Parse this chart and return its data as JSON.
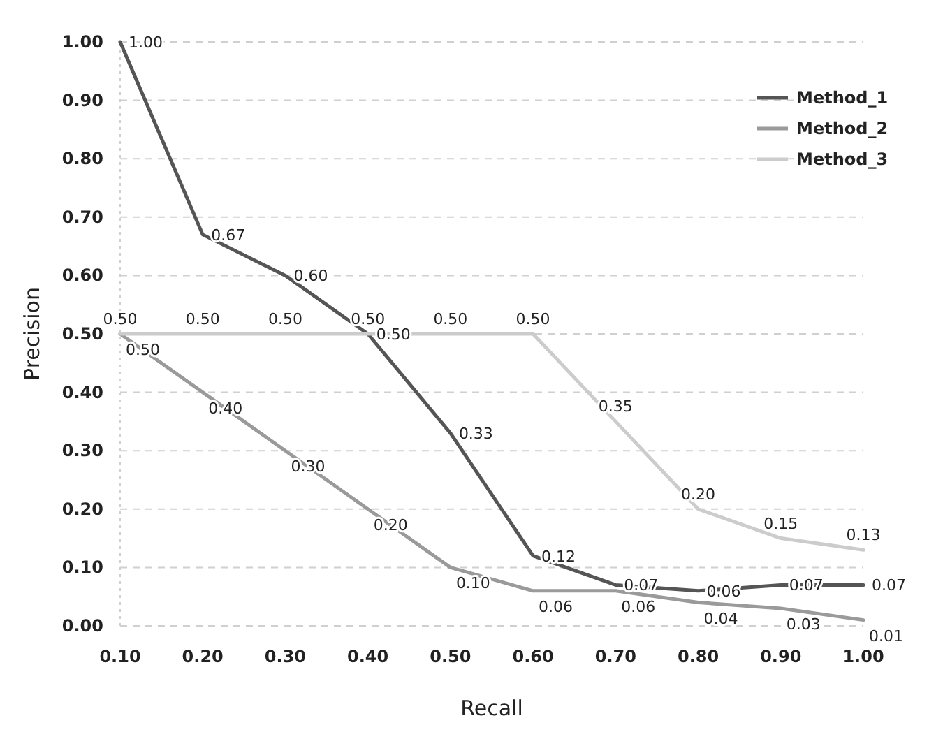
{
  "chart_data": {
    "type": "line",
    "xlabel": "Recall",
    "ylabel": "Precision",
    "categories": [
      "0.10",
      "0.20",
      "0.30",
      "0.40",
      "0.50",
      "0.60",
      "0.70",
      "0.80",
      "0.90",
      "1.00"
    ],
    "series": [
      {
        "name": "Method_1",
        "color": "#555555",
        "values": [
          1.0,
          0.67,
          0.6,
          0.5,
          0.33,
          0.12,
          0.07,
          0.06,
          0.07,
          0.07
        ],
        "value_labels": [
          "1.00",
          "0.67",
          "0.60",
          "0.50",
          "0.33",
          "0.12",
          "0.07",
          "0.06",
          "0.07",
          "0.07"
        ]
      },
      {
        "name": "Method_2",
        "color": "#9a9a9a",
        "values": [
          0.5,
          0.4,
          0.3,
          0.2,
          0.1,
          0.06,
          0.06,
          0.04,
          0.03,
          0.01
        ],
        "value_labels": [
          "0.50",
          "0.40",
          "0.30",
          "0.20",
          "0.10",
          "0.06",
          "0.06",
          "0.04",
          "0.03",
          "0.01"
        ]
      },
      {
        "name": "Method_3",
        "color": "#cccccc",
        "values": [
          0.5,
          0.5,
          0.5,
          0.5,
          0.5,
          0.5,
          0.35,
          0.2,
          0.15,
          0.13
        ],
        "value_labels": [
          "0.50",
          "0.50",
          "0.50",
          "0.50",
          "0.50",
          "0.50",
          "0.35",
          "0.20",
          "0.15",
          "0.13"
        ]
      }
    ],
    "ylim": [
      0,
      1
    ],
    "yticks": [
      {
        "value": 0,
        "label": "0.00"
      },
      {
        "value": 0.1,
        "label": "0.10"
      },
      {
        "value": 0.2,
        "label": "0.20"
      },
      {
        "value": 0.3,
        "label": "0.30"
      },
      {
        "value": 0.4,
        "label": "0.40"
      },
      {
        "value": 0.5,
        "label": "0.50"
      },
      {
        "value": 0.6,
        "label": "0.60"
      },
      {
        "value": 0.7,
        "label": "0.70"
      },
      {
        "value": 0.8,
        "label": "0.80"
      },
      {
        "value": 0.9,
        "label": "0.90"
      },
      {
        "value": 1,
        "label": "1.00"
      }
    ],
    "grid": "y",
    "legend": "top right",
    "marker": "none",
    "line_style": "solid"
  }
}
